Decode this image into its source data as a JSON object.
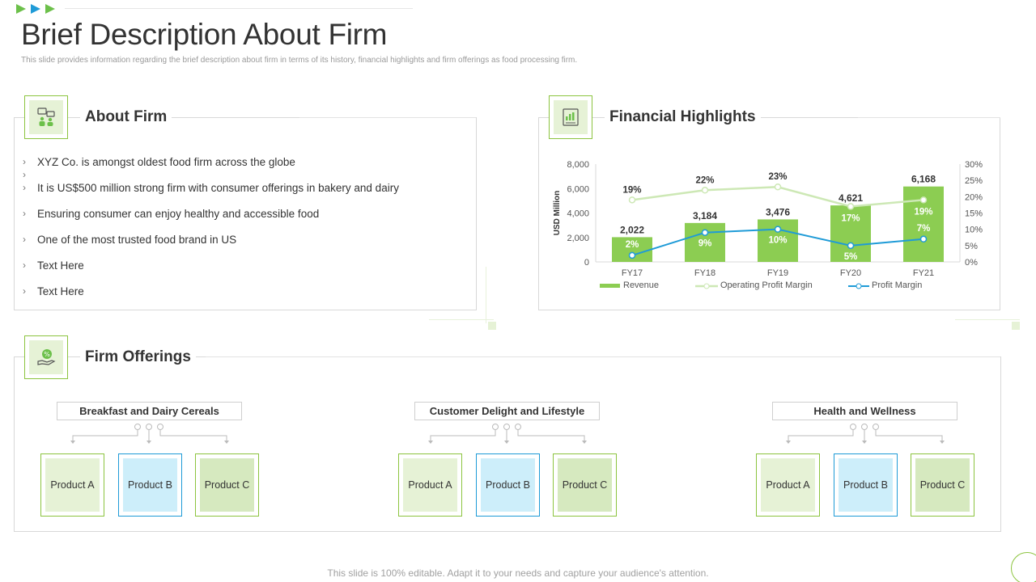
{
  "page": {
    "title": "Brief Description About Firm",
    "subtitle": "This slide provides information regarding the brief description about firm in terms of its history, financial highlights and firm offerings as food processing firm.",
    "footer": "This slide is 100% editable. Adapt it to your needs and capture your audience's attention."
  },
  "about_firm": {
    "heading": "About Firm",
    "icon": "team-chat-icon",
    "bullets": [
      "XYZ Co. is amongst oldest food firm across the globe",
      "",
      "It is US$500 million strong firm with consumer offerings  in bakery and dairy",
      "Ensuring consumer can enjoy healthy and accessible food",
      "One of the most trusted food brand  in US",
      "Text Here",
      "Text Here"
    ]
  },
  "financial": {
    "heading": "Financial Highlights",
    "icon": "financial-report-icon"
  },
  "offerings": {
    "heading": "Firm Offerings",
    "icon": "hand-percent-icon",
    "categories": [
      {
        "label": "Breakfast and Dairy Cereals",
        "products": [
          "Product A",
          "Product B",
          "Product C"
        ]
      },
      {
        "label": "Customer  Delight and Lifestyle",
        "products": [
          "Product A",
          "Product B",
          "Product C"
        ]
      },
      {
        "label": "Health and Wellness",
        "products": [
          "Product A",
          "Product B",
          "Product C"
        ]
      }
    ]
  },
  "colors": {
    "green": "#8cc43f",
    "bar_green": "#8ccd52",
    "blue": "#1f9bd7",
    "light_green": "#cde8b5"
  },
  "chart_data": {
    "type": "bar",
    "categories": [
      "FY17",
      "FY18",
      "FY19",
      "FY20",
      "FY21"
    ],
    "ylabel": "USD Million",
    "ylim": [
      0,
      8000
    ],
    "y_ticks": [
      "0",
      "2,000",
      "4,000",
      "6,000",
      "8,000"
    ],
    "y2lim": [
      0,
      30
    ],
    "y2_ticks": [
      "0%",
      "5%",
      "10%",
      "15%",
      "20%",
      "25%",
      "30%"
    ],
    "grid": false,
    "legend_position": "bottom",
    "series": [
      {
        "name": "Revenue",
        "kind": "bar",
        "values": [
          2022,
          3184,
          3476,
          4621,
          6168
        ],
        "labels": [
          "2,022",
          "3,184",
          "3,476",
          "4,621",
          "6,168"
        ]
      },
      {
        "name": "Operating Profit Margin",
        "kind": "line",
        "axis": "right",
        "values": [
          19,
          22,
          23,
          17,
          19
        ],
        "labels": [
          "19%",
          "22%",
          "23%",
          "17%",
          "19%"
        ]
      },
      {
        "name": "Profit Margin",
        "kind": "line",
        "axis": "right",
        "values": [
          2,
          9,
          10,
          5,
          7
        ],
        "labels": [
          "2%",
          "9%",
          "10%",
          "5%",
          "7%"
        ]
      }
    ]
  }
}
